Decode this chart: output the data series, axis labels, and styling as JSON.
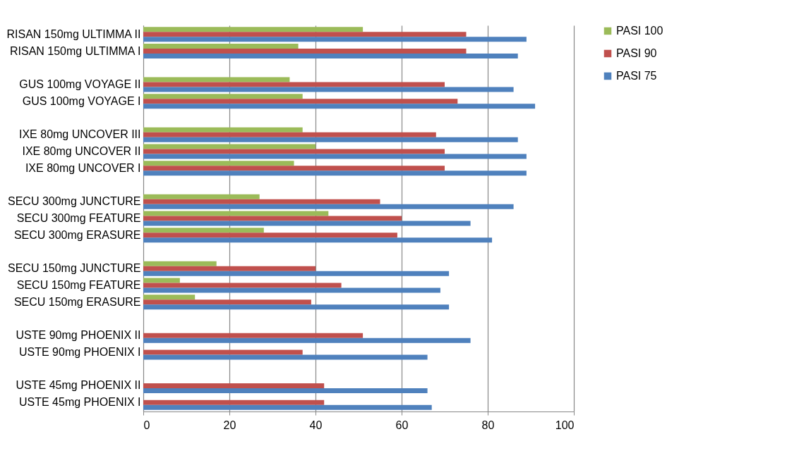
{
  "chart_data": {
    "type": "bar",
    "orientation": "horizontal",
    "categories": [
      "RISAN 150mg ULTIMMA II",
      "RISAN 150mg ULTIMMA I",
      null,
      "GUS 100mg VOYAGE II",
      "GUS 100mg VOYAGE I",
      null,
      "IXE 80mg UNCOVER III",
      "IXE 80mg UNCOVER II",
      "IXE 80mg UNCOVER I",
      null,
      "SECU 300mg JUNCTURE",
      "SECU 300mg FEATURE",
      "SECU 300mg ERASURE",
      null,
      "SECU 150mg JUNCTURE",
      "SECU 150mg FEATURE",
      "SECU 150mg ERASURE",
      null,
      "USTE 90mg PHOENIX II",
      "USTE 90mg PHOENIX I",
      null,
      "USTE 45mg PHOENIX II",
      "USTE 45mg PHOENIX I"
    ],
    "series": [
      {
        "name": "PASI 100",
        "color": "#9bbb59",
        "values": [
          51,
          36,
          null,
          34,
          37,
          null,
          37,
          40,
          35,
          null,
          27,
          43,
          28,
          null,
          17,
          8.5,
          12,
          null,
          null,
          null,
          null,
          null,
          null
        ]
      },
      {
        "name": "PASI 90",
        "color": "#c0504d",
        "values": [
          75,
          75,
          null,
          70,
          73,
          null,
          68,
          70,
          70,
          null,
          55,
          60,
          59,
          null,
          40,
          46,
          39,
          null,
          51,
          37,
          null,
          42,
          42
        ]
      },
      {
        "name": "PASI 75",
        "color": "#4f81bd",
        "values": [
          89,
          87,
          null,
          86,
          91,
          null,
          87,
          89,
          89,
          null,
          86,
          76,
          81,
          null,
          71,
          69,
          71,
          null,
          76,
          66,
          null,
          66,
          67
        ]
      }
    ],
    "xlim": [
      0,
      100
    ],
    "xticks": [
      0,
      20,
      40,
      60,
      80,
      100
    ],
    "grid": "x",
    "legend": "right"
  }
}
